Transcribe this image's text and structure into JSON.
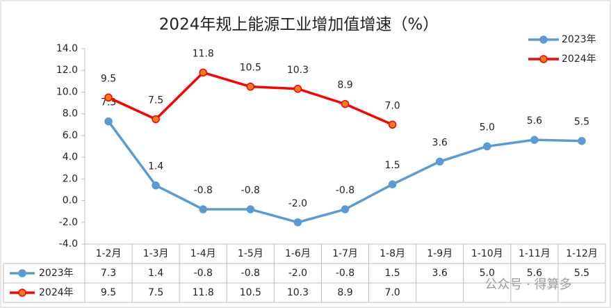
{
  "chart_data": {
    "type": "line",
    "title": "2024年规上能源工业增加值增速（%）",
    "categories": [
      "1-2月",
      "1-3月",
      "1-4月",
      "1-5月",
      "1-6月",
      "1-7月",
      "1-8月",
      "1-9月",
      "1-10月",
      "1-11月",
      "1-12月"
    ],
    "series": [
      {
        "name": "2023年",
        "color": "#5b9bd5",
        "marker_fill": "#5b9bd5",
        "values": [
          7.3,
          1.4,
          -0.8,
          -0.8,
          -2.0,
          -0.8,
          1.5,
          3.6,
          5.0,
          5.6,
          5.5
        ],
        "value_labels": [
          "7.3",
          "1.4",
          "-0.8",
          "-0.8",
          "-2.0",
          "-0.8",
          "1.5",
          "3.6",
          "5.0",
          "5.6",
          "5.5"
        ]
      },
      {
        "name": "2024年",
        "color": "#ff0000",
        "marker_fill": "#f07c1e",
        "values": [
          9.5,
          7.5,
          11.8,
          10.5,
          10.3,
          8.9,
          7.0,
          null,
          null,
          null,
          null
        ],
        "value_labels": [
          "9.5",
          "7.5",
          "11.8",
          "10.5",
          "10.3",
          "8.9",
          "7.0",
          null,
          null,
          null,
          null
        ]
      }
    ],
    "ylim": [
      -4,
      14
    ],
    "yticks": [
      {
        "value": -4,
        "label": "-4.0"
      },
      {
        "value": -2,
        "label": "-2.0"
      },
      {
        "value": 0,
        "label": "0.0"
      },
      {
        "value": 2,
        "label": "2.0"
      },
      {
        "value": 4,
        "label": "4.0"
      },
      {
        "value": 6,
        "label": "6.0"
      },
      {
        "value": 8,
        "label": "8.0"
      },
      {
        "value": 10,
        "label": "10.0"
      },
      {
        "value": 12,
        "label": "12.0"
      },
      {
        "value": 14,
        "label": "14.0"
      }
    ],
    "grid": false,
    "legend": "top-right",
    "watermark": "公众号 · 得算多"
  }
}
